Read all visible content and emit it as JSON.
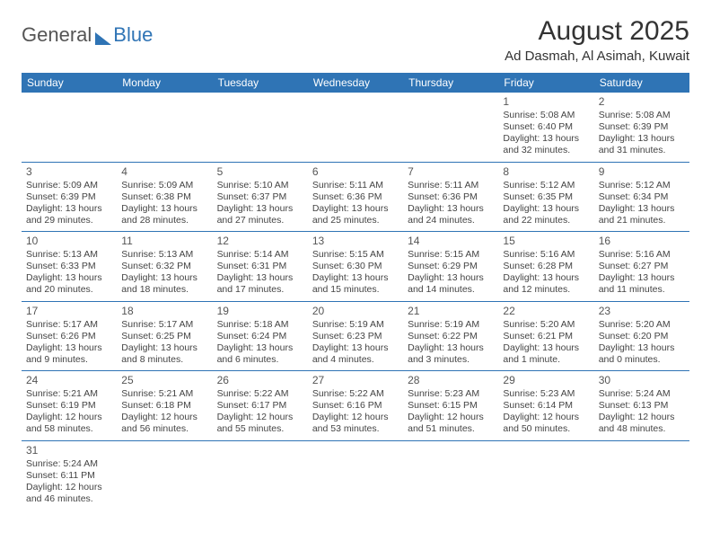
{
  "logo": {
    "a": "General",
    "b": "Blue"
  },
  "title": "August 2025",
  "location": "Ad Dasmah, Al Asimah, Kuwait",
  "dow": [
    "Sunday",
    "Monday",
    "Tuesday",
    "Wednesday",
    "Thursday",
    "Friday",
    "Saturday"
  ],
  "startOffset": 5,
  "days": [
    {
      "n": "1",
      "sr": "5:08 AM",
      "ss": "6:40 PM",
      "dl": "13 hours and 32 minutes."
    },
    {
      "n": "2",
      "sr": "5:08 AM",
      "ss": "6:39 PM",
      "dl": "13 hours and 31 minutes."
    },
    {
      "n": "3",
      "sr": "5:09 AM",
      "ss": "6:39 PM",
      "dl": "13 hours and 29 minutes."
    },
    {
      "n": "4",
      "sr": "5:09 AM",
      "ss": "6:38 PM",
      "dl": "13 hours and 28 minutes."
    },
    {
      "n": "5",
      "sr": "5:10 AM",
      "ss": "6:37 PM",
      "dl": "13 hours and 27 minutes."
    },
    {
      "n": "6",
      "sr": "5:11 AM",
      "ss": "6:36 PM",
      "dl": "13 hours and 25 minutes."
    },
    {
      "n": "7",
      "sr": "5:11 AM",
      "ss": "6:36 PM",
      "dl": "13 hours and 24 minutes."
    },
    {
      "n": "8",
      "sr": "5:12 AM",
      "ss": "6:35 PM",
      "dl": "13 hours and 22 minutes."
    },
    {
      "n": "9",
      "sr": "5:12 AM",
      "ss": "6:34 PM",
      "dl": "13 hours and 21 minutes."
    },
    {
      "n": "10",
      "sr": "5:13 AM",
      "ss": "6:33 PM",
      "dl": "13 hours and 20 minutes."
    },
    {
      "n": "11",
      "sr": "5:13 AM",
      "ss": "6:32 PM",
      "dl": "13 hours and 18 minutes."
    },
    {
      "n": "12",
      "sr": "5:14 AM",
      "ss": "6:31 PM",
      "dl": "13 hours and 17 minutes."
    },
    {
      "n": "13",
      "sr": "5:15 AM",
      "ss": "6:30 PM",
      "dl": "13 hours and 15 minutes."
    },
    {
      "n": "14",
      "sr": "5:15 AM",
      "ss": "6:29 PM",
      "dl": "13 hours and 14 minutes."
    },
    {
      "n": "15",
      "sr": "5:16 AM",
      "ss": "6:28 PM",
      "dl": "13 hours and 12 minutes."
    },
    {
      "n": "16",
      "sr": "5:16 AM",
      "ss": "6:27 PM",
      "dl": "13 hours and 11 minutes."
    },
    {
      "n": "17",
      "sr": "5:17 AM",
      "ss": "6:26 PM",
      "dl": "13 hours and 9 minutes."
    },
    {
      "n": "18",
      "sr": "5:17 AM",
      "ss": "6:25 PM",
      "dl": "13 hours and 8 minutes."
    },
    {
      "n": "19",
      "sr": "5:18 AM",
      "ss": "6:24 PM",
      "dl": "13 hours and 6 minutes."
    },
    {
      "n": "20",
      "sr": "5:19 AM",
      "ss": "6:23 PM",
      "dl": "13 hours and 4 minutes."
    },
    {
      "n": "21",
      "sr": "5:19 AM",
      "ss": "6:22 PM",
      "dl": "13 hours and 3 minutes."
    },
    {
      "n": "22",
      "sr": "5:20 AM",
      "ss": "6:21 PM",
      "dl": "13 hours and 1 minute."
    },
    {
      "n": "23",
      "sr": "5:20 AM",
      "ss": "6:20 PM",
      "dl": "13 hours and 0 minutes."
    },
    {
      "n": "24",
      "sr": "5:21 AM",
      "ss": "6:19 PM",
      "dl": "12 hours and 58 minutes."
    },
    {
      "n": "25",
      "sr": "5:21 AM",
      "ss": "6:18 PM",
      "dl": "12 hours and 56 minutes."
    },
    {
      "n": "26",
      "sr": "5:22 AM",
      "ss": "6:17 PM",
      "dl": "12 hours and 55 minutes."
    },
    {
      "n": "27",
      "sr": "5:22 AM",
      "ss": "6:16 PM",
      "dl": "12 hours and 53 minutes."
    },
    {
      "n": "28",
      "sr": "5:23 AM",
      "ss": "6:15 PM",
      "dl": "12 hours and 51 minutes."
    },
    {
      "n": "29",
      "sr": "5:23 AM",
      "ss": "6:14 PM",
      "dl": "12 hours and 50 minutes."
    },
    {
      "n": "30",
      "sr": "5:24 AM",
      "ss": "6:13 PM",
      "dl": "12 hours and 48 minutes."
    },
    {
      "n": "31",
      "sr": "5:24 AM",
      "ss": "6:11 PM",
      "dl": "12 hours and 46 minutes."
    }
  ],
  "labels": {
    "sr": "Sunrise: ",
    "ss": "Sunset: ",
    "dl": "Daylight: "
  },
  "colors": {
    "accent": "#2f74b5",
    "bg": "#ffffff"
  }
}
